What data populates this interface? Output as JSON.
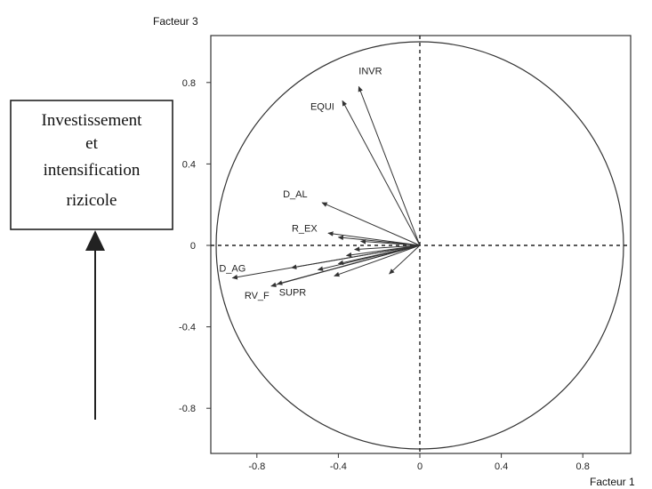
{
  "annotation": {
    "lines": [
      "Investissement",
      "et",
      "intensification",
      "rizicole"
    ]
  },
  "chart_data": {
    "type": "scatter",
    "subtype": "correlation-circle",
    "title": "",
    "xlabel": "Facteur 1",
    "ylabel": "Facteur 3",
    "xlim": [
      -1.02,
      1.02
    ],
    "ylim": [
      -1.02,
      1.02
    ],
    "xticks": [
      -0.8,
      -0.4,
      0,
      0.4,
      0.8
    ],
    "yticks": [
      0.8,
      0.4,
      0,
      -0.4,
      -0.8
    ],
    "xtick_labels": [
      "-0.8",
      "-0.4",
      "0",
      "0.4",
      "0.8"
    ],
    "ytick_labels": [
      "0.8",
      "0.4",
      "0",
      "-0.4",
      "-0.8"
    ],
    "grid": false,
    "reference_lines": "dashed x=0 and y=0",
    "circle_radius": 1,
    "vectors": [
      {
        "label": "INVR",
        "x": -0.3,
        "y": 0.78
      },
      {
        "label": "EQUI",
        "x": -0.38,
        "y": 0.71
      },
      {
        "label": "D_AL",
        "x": -0.48,
        "y": 0.21
      },
      {
        "label": "R_EX",
        "x": -0.45,
        "y": 0.06
      },
      {
        "label": "D_AG",
        "x": -0.92,
        "y": -0.16
      },
      {
        "label": "RV_F",
        "x": -0.73,
        "y": -0.2
      },
      {
        "label": "SUPR",
        "x": -0.7,
        "y": -0.19
      },
      {
        "label": "",
        "x": -0.4,
        "y": 0.04
      },
      {
        "label": "",
        "x": -0.29,
        "y": 0.02
      },
      {
        "label": "",
        "x": -0.32,
        "y": -0.02
      },
      {
        "label": "",
        "x": -0.36,
        "y": -0.05
      },
      {
        "label": "",
        "x": -0.4,
        "y": -0.09
      },
      {
        "label": "",
        "x": -0.5,
        "y": -0.12
      },
      {
        "label": "",
        "x": -0.63,
        "y": -0.11
      },
      {
        "label": "",
        "x": -0.42,
        "y": -0.15
      },
      {
        "label": "",
        "x": -0.15,
        "y": -0.14
      }
    ]
  }
}
